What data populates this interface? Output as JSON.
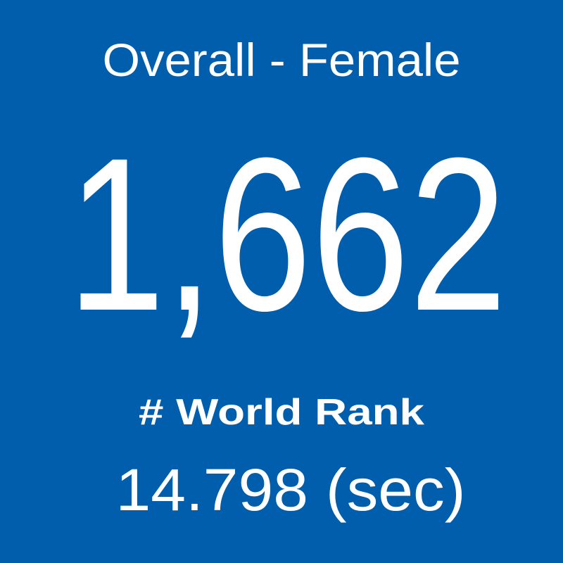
{
  "header": {
    "title": "Overall - Female"
  },
  "rank": {
    "value": "1,662",
    "label": "# World Rank"
  },
  "time": {
    "text": "14.798 (sec)"
  }
}
